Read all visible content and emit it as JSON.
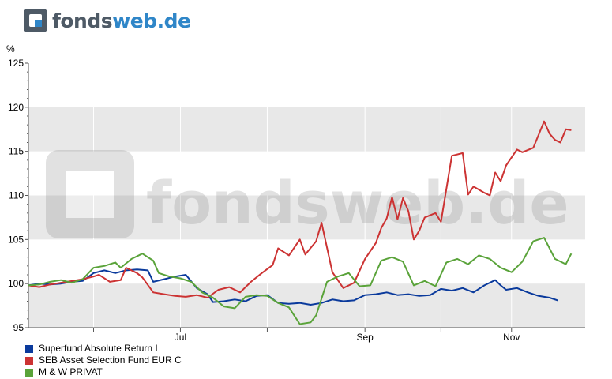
{
  "logo": {
    "part1": "fonds",
    "part2": "web.de",
    "watermark": "fondsweb.de"
  },
  "chart_data": {
    "type": "line",
    "ylabel": "%",
    "ylim": [
      95,
      125
    ],
    "yticks": [
      95,
      100,
      105,
      110,
      115,
      120,
      125
    ],
    "x_tick_labels": [
      {
        "label": "Jul",
        "x": 0.28
      },
      {
        "label": "Sep",
        "x": 0.62
      },
      {
        "label": "Nov",
        "x": 0.89
      }
    ],
    "grid": "alternating horizontal bands",
    "legend_position": "bottom-left",
    "series": [
      {
        "name": "Superfund Absolute Return I",
        "color": "#0a3a9c",
        "points": [
          [
            0,
            99.8
          ],
          [
            0.02,
            100.0
          ],
          [
            0.04,
            99.9
          ],
          [
            0.06,
            100.0
          ],
          [
            0.08,
            100.2
          ],
          [
            0.1,
            100.3
          ],
          [
            0.12,
            101.2
          ],
          [
            0.14,
            101.5
          ],
          [
            0.16,
            101.2
          ],
          [
            0.18,
            101.5
          ],
          [
            0.2,
            101.6
          ],
          [
            0.22,
            101.5
          ],
          [
            0.23,
            100.2
          ],
          [
            0.25,
            100.5
          ],
          [
            0.27,
            100.8
          ],
          [
            0.29,
            101.0
          ],
          [
            0.31,
            99.5
          ],
          [
            0.33,
            98.8
          ],
          [
            0.34,
            97.9
          ],
          [
            0.36,
            98.0
          ],
          [
            0.38,
            98.2
          ],
          [
            0.4,
            98.0
          ],
          [
            0.42,
            98.6
          ],
          [
            0.44,
            98.7
          ],
          [
            0.46,
            97.8
          ],
          [
            0.48,
            97.7
          ],
          [
            0.5,
            97.8
          ],
          [
            0.52,
            97.6
          ],
          [
            0.54,
            97.8
          ],
          [
            0.56,
            98.2
          ],
          [
            0.58,
            98.0
          ],
          [
            0.6,
            98.1
          ],
          [
            0.62,
            98.7
          ],
          [
            0.64,
            98.8
          ],
          [
            0.66,
            99.0
          ],
          [
            0.68,
            98.7
          ],
          [
            0.7,
            98.8
          ],
          [
            0.72,
            98.6
          ],
          [
            0.74,
            98.7
          ],
          [
            0.76,
            99.4
          ],
          [
            0.78,
            99.2
          ],
          [
            0.8,
            99.5
          ],
          [
            0.82,
            99.0
          ],
          [
            0.84,
            99.8
          ],
          [
            0.86,
            100.4
          ],
          [
            0.87,
            99.8
          ],
          [
            0.88,
            99.3
          ],
          [
            0.9,
            99.5
          ],
          [
            0.92,
            99.0
          ],
          [
            0.94,
            98.6
          ],
          [
            0.96,
            98.4
          ],
          [
            0.975,
            98.1
          ]
        ]
      },
      {
        "name": "SEB Asset Selection Fund EUR C",
        "color": "#cc3333",
        "points": [
          [
            0,
            99.8
          ],
          [
            0.02,
            99.6
          ],
          [
            0.04,
            99.9
          ],
          [
            0.06,
            100.1
          ],
          [
            0.08,
            100.3
          ],
          [
            0.1,
            100.5
          ],
          [
            0.12,
            100.8
          ],
          [
            0.13,
            101.0
          ],
          [
            0.15,
            100.2
          ],
          [
            0.17,
            100.4
          ],
          [
            0.18,
            101.8
          ],
          [
            0.2,
            101.2
          ],
          [
            0.21,
            100.7
          ],
          [
            0.23,
            99.0
          ],
          [
            0.25,
            98.8
          ],
          [
            0.27,
            98.6
          ],
          [
            0.29,
            98.5
          ],
          [
            0.31,
            98.7
          ],
          [
            0.33,
            98.4
          ],
          [
            0.35,
            99.3
          ],
          [
            0.37,
            99.6
          ],
          [
            0.39,
            99.0
          ],
          [
            0.41,
            100.2
          ],
          [
            0.43,
            101.2
          ],
          [
            0.45,
            102.1
          ],
          [
            0.46,
            104.0
          ],
          [
            0.48,
            103.2
          ],
          [
            0.5,
            105.0
          ],
          [
            0.51,
            103.3
          ],
          [
            0.53,
            104.8
          ],
          [
            0.54,
            106.9
          ],
          [
            0.56,
            101.3
          ],
          [
            0.58,
            99.5
          ],
          [
            0.6,
            100.1
          ],
          [
            0.62,
            102.8
          ],
          [
            0.64,
            104.6
          ],
          [
            0.65,
            106.3
          ],
          [
            0.66,
            107.4
          ],
          [
            0.67,
            109.8
          ],
          [
            0.68,
            107.3
          ],
          [
            0.69,
            109.7
          ],
          [
            0.7,
            108.2
          ],
          [
            0.71,
            105.0
          ],
          [
            0.72,
            106.0
          ],
          [
            0.73,
            107.5
          ],
          [
            0.75,
            108.0
          ],
          [
            0.76,
            107.0
          ],
          [
            0.78,
            114.5
          ],
          [
            0.8,
            114.8
          ],
          [
            0.81,
            110.1
          ],
          [
            0.82,
            111.0
          ],
          [
            0.84,
            110.3
          ],
          [
            0.85,
            110.0
          ],
          [
            0.86,
            112.6
          ],
          [
            0.87,
            111.6
          ],
          [
            0.88,
            113.4
          ],
          [
            0.9,
            115.2
          ],
          [
            0.91,
            114.9
          ],
          [
            0.93,
            115.4
          ],
          [
            0.95,
            118.4
          ],
          [
            0.96,
            117.0
          ],
          [
            0.97,
            116.3
          ],
          [
            0.98,
            116.0
          ],
          [
            0.99,
            117.5
          ],
          [
            1.0,
            117.4
          ]
        ]
      },
      {
        "name": "M & W PRIVAT",
        "color": "#5aa33a",
        "points": [
          [
            0,
            99.8
          ],
          [
            0.02,
            99.9
          ],
          [
            0.04,
            100.2
          ],
          [
            0.06,
            100.4
          ],
          [
            0.08,
            100.1
          ],
          [
            0.1,
            100.5
          ],
          [
            0.12,
            101.8
          ],
          [
            0.14,
            102.0
          ],
          [
            0.16,
            102.4
          ],
          [
            0.17,
            101.8
          ],
          [
            0.19,
            102.8
          ],
          [
            0.21,
            103.4
          ],
          [
            0.23,
            102.6
          ],
          [
            0.24,
            101.2
          ],
          [
            0.26,
            100.8
          ],
          [
            0.28,
            100.6
          ],
          [
            0.3,
            100.2
          ],
          [
            0.32,
            99.0
          ],
          [
            0.34,
            98.4
          ],
          [
            0.36,
            97.4
          ],
          [
            0.38,
            97.2
          ],
          [
            0.4,
            98.5
          ],
          [
            0.42,
            98.7
          ],
          [
            0.44,
            98.6
          ],
          [
            0.46,
            97.8
          ],
          [
            0.48,
            97.3
          ],
          [
            0.5,
            95.4
          ],
          [
            0.52,
            95.6
          ],
          [
            0.53,
            96.4
          ],
          [
            0.55,
            100.2
          ],
          [
            0.57,
            100.8
          ],
          [
            0.59,
            101.2
          ],
          [
            0.61,
            99.7
          ],
          [
            0.63,
            99.8
          ],
          [
            0.65,
            102.6
          ],
          [
            0.67,
            103.0
          ],
          [
            0.69,
            102.5
          ],
          [
            0.71,
            99.8
          ],
          [
            0.73,
            100.3
          ],
          [
            0.75,
            99.7
          ],
          [
            0.77,
            102.4
          ],
          [
            0.79,
            102.8
          ],
          [
            0.81,
            102.2
          ],
          [
            0.83,
            103.2
          ],
          [
            0.85,
            102.8
          ],
          [
            0.87,
            101.8
          ],
          [
            0.89,
            101.3
          ],
          [
            0.91,
            102.5
          ],
          [
            0.93,
            104.8
          ],
          [
            0.95,
            105.2
          ],
          [
            0.97,
            102.8
          ],
          [
            0.99,
            102.2
          ],
          [
            1.0,
            103.4
          ]
        ]
      }
    ]
  }
}
